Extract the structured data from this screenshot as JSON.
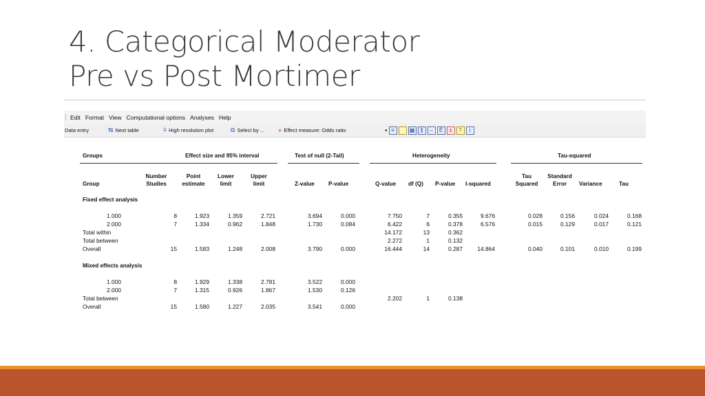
{
  "slide": {
    "title_line1": "4.  Categorical Moderator",
    "title_line2": "Pre vs Post Mortimer"
  },
  "menu": [
    "Edit",
    "Format",
    "View",
    "Computational options",
    "Analyses",
    "Help"
  ],
  "toolbar": {
    "data_entry": "Data entry",
    "next_table": "Next table",
    "high_res_plot": "High resolution plot",
    "select_by": "Select by ...",
    "effect_measure": "Effect measure: Odds ratio"
  },
  "table": {
    "groups": {
      "groups": "Groups",
      "effect": "Effect size and 95% interval",
      "null": "Test of null (2-Tail)",
      "heterogeneity": "Heterogeneity",
      "tau": "Tau-squared"
    },
    "cols": {
      "group": "Group",
      "number1": "Number",
      "number2": "Studies",
      "point1": "Point",
      "point2": "estimate",
      "lower1": "Lower",
      "lower2": "limit",
      "upper1": "Upper",
      "upper2": "limit",
      "z": "Z-value",
      "p": "P-value",
      "q": "Q-value",
      "df": "df (Q)",
      "pq": "P-value",
      "i2": "I-squared",
      "tau1": "Tau",
      "tau2": "Squared",
      "se1": "Standard",
      "se2": "Error",
      "variance": "Variance",
      "tau_col": "Tau"
    },
    "fixed_label": "Fixed effect analysis",
    "mixed_label": "Mixed effects analysis",
    "fixed_rows": [
      {
        "g": "1.000",
        "n": "8",
        "pt": "1.923",
        "lo": "1.359",
        "up": "2.721",
        "z": "3.694",
        "p": "0.000",
        "q": "7.750",
        "df": "7",
        "pq": "0.355",
        "i2": "9.676",
        "t2": "0.028",
        "se": "0.156",
        "var": "0.024",
        "tau": "0.168"
      },
      {
        "g": "2.000",
        "n": "7",
        "pt": "1.334",
        "lo": "0.962",
        "up": "1.848",
        "z": "1.730",
        "p": "0.084",
        "q": "6.422",
        "df": "6",
        "pq": "0.378",
        "i2": "6.576",
        "t2": "0.015",
        "se": "0.129",
        "var": "0.017",
        "tau": "0.121"
      },
      {
        "g": "Total within",
        "n": "",
        "pt": "",
        "lo": "",
        "up": "",
        "z": "",
        "p": "",
        "q": "14.172",
        "df": "13",
        "pq": "0.362",
        "i2": "",
        "t2": "",
        "se": "",
        "var": "",
        "tau": ""
      },
      {
        "g": "Total between",
        "n": "",
        "pt": "",
        "lo": "",
        "up": "",
        "z": "",
        "p": "",
        "q": "2.272",
        "df": "1",
        "pq": "0.132",
        "i2": "",
        "t2": "",
        "se": "",
        "var": "",
        "tau": ""
      },
      {
        "g": "Overall",
        "n": "15",
        "pt": "1.583",
        "lo": "1.248",
        "up": "2.008",
        "z": "3.790",
        "p": "0.000",
        "q": "16.444",
        "df": "14",
        "pq": "0.287",
        "i2": "14.864",
        "t2": "0.040",
        "se": "0.101",
        "var": "0.010",
        "tau": "0.199"
      }
    ],
    "mixed_rows": [
      {
        "g": "1.000",
        "n": "8",
        "pt": "1.929",
        "lo": "1.338",
        "up": "2.781",
        "z": "3.522",
        "p": "0.000",
        "q": "",
        "df": "",
        "pq": "",
        "i2": "",
        "t2": "",
        "se": "",
        "var": "",
        "tau": ""
      },
      {
        "g": "2.000",
        "n": "7",
        "pt": "1.315",
        "lo": "0.926",
        "up": "1.867",
        "z": "1.530",
        "p": "0.126",
        "q": "",
        "df": "",
        "pq": "",
        "i2": "",
        "t2": "",
        "se": "",
        "var": "",
        "tau": ""
      },
      {
        "g": "Total between",
        "n": "",
        "pt": "",
        "lo": "",
        "up": "",
        "z": "",
        "p": "",
        "q": "2.202",
        "df": "1",
        "pq": "0.138",
        "i2": "",
        "t2": "",
        "se": "",
        "var": "",
        "tau": ""
      },
      {
        "g": "Overall",
        "n": "15",
        "pt": "1.580",
        "lo": "1.227",
        "up": "2.035",
        "z": "3.541",
        "p": "0.000",
        "q": "",
        "df": "",
        "pq": "",
        "i2": "",
        "t2": "",
        "se": "",
        "var": "",
        "tau": ""
      }
    ]
  },
  "colors": {
    "footer_gold": "#e5952b",
    "footer_rust": "#b9542c"
  }
}
